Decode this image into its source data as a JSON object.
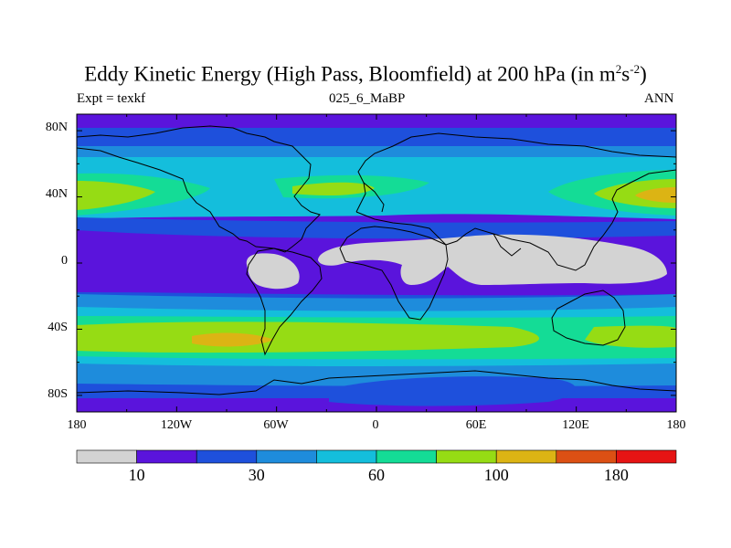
{
  "title": {
    "main": "Eddy Kinetic Energy (High Pass, Bloomfield) at 200 hPa (in m",
    "sup1": "2",
    "mid": "s",
    "sup2": "-2",
    "close": ")"
  },
  "left_label": "Expt = texkf",
  "center_label": "025_6_MaBP",
  "right_label": "ANN",
  "lat_labels": [
    "80N",
    "40N",
    "0",
    "40S",
    "80S"
  ],
  "lon_labels": [
    "180",
    "120W",
    "60W",
    "0",
    "60E",
    "120E",
    "180"
  ],
  "colorbar": {
    "colors": [
      "#d3d3d3",
      "#5a14dc",
      "#1e50dc",
      "#1e8cdc",
      "#14bedc",
      "#14dc96",
      "#96dc14",
      "#dcb414",
      "#dc5014",
      "#e61414"
    ],
    "labels": [
      {
        "text": "10",
        "boundary": 1
      },
      {
        "text": "30",
        "boundary": 3
      },
      {
        "text": "60",
        "boundary": 5
      },
      {
        "text": "100",
        "boundary": 7
      },
      {
        "text": "180",
        "boundary": 9
      }
    ]
  },
  "map": {
    "lon_range": [
      -180,
      180
    ],
    "lat_range": [
      -90,
      90
    ]
  }
}
